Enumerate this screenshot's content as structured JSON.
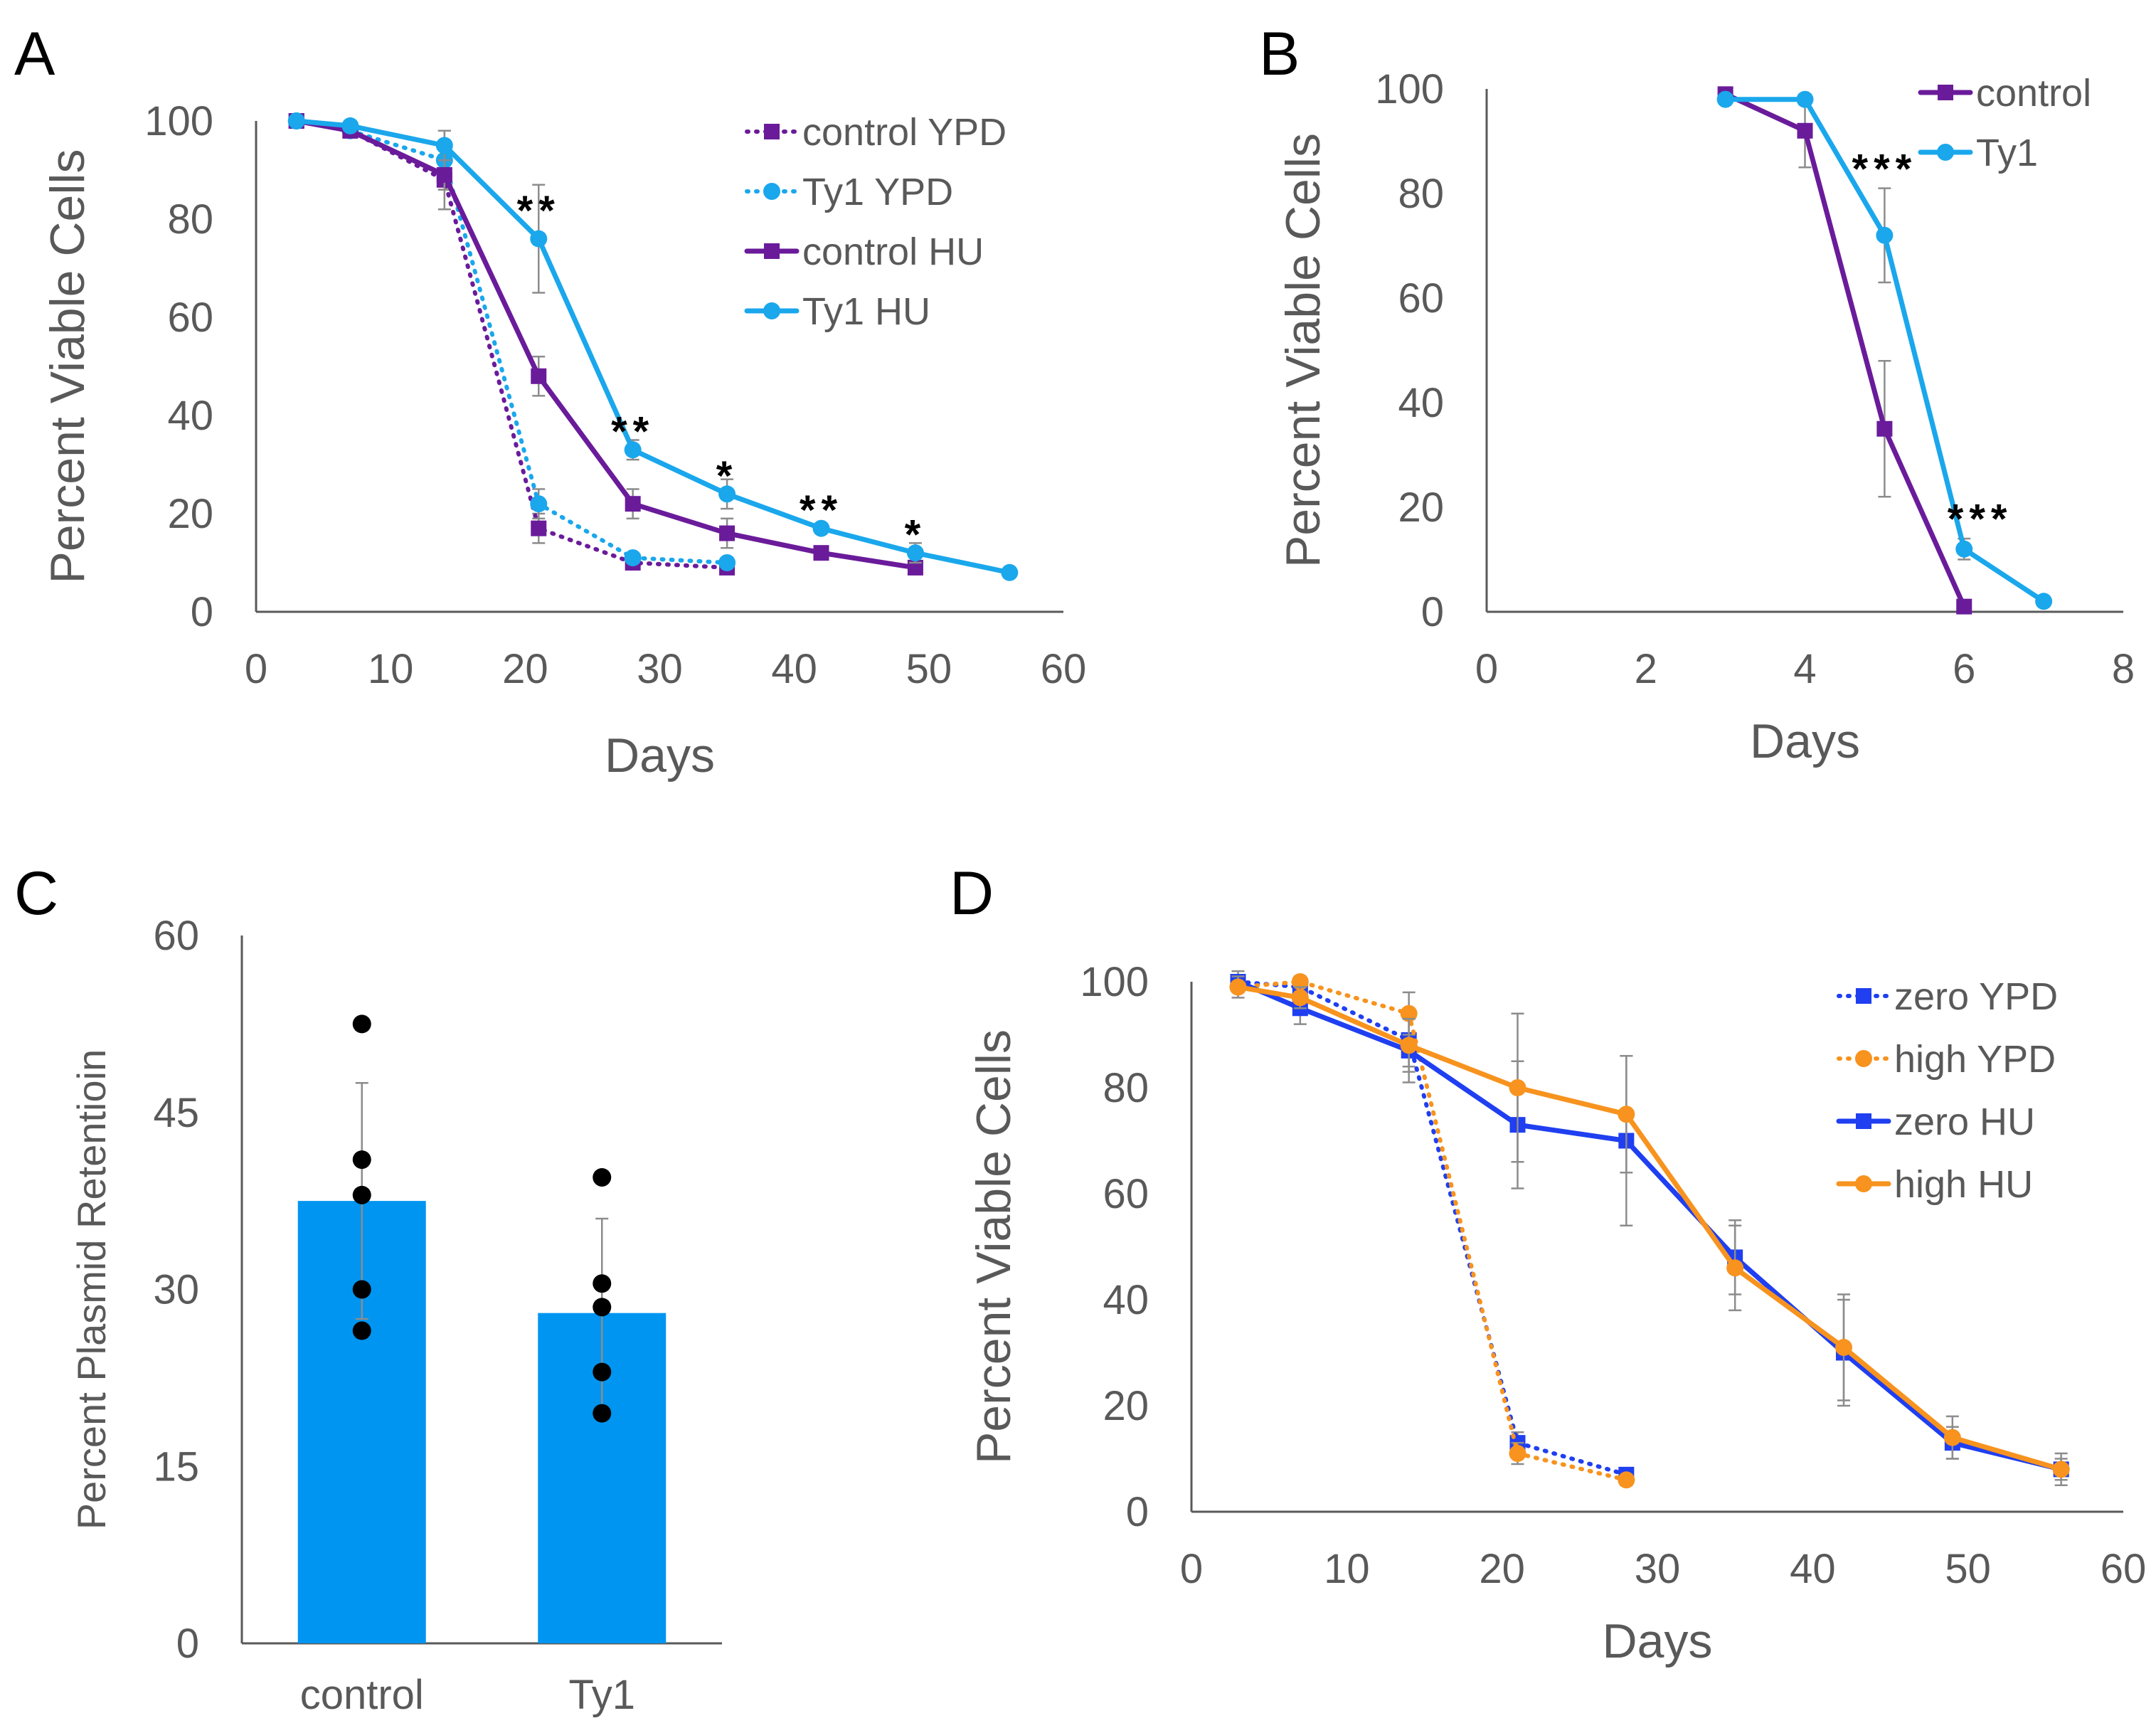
{
  "colors": {
    "purple": "#6a1b9a",
    "lightblue": "#1aa7ec",
    "blue": "#1f3ff0",
    "orange": "#f7931e",
    "bar": "#0095f0",
    "axis": "#595959",
    "errorbar": "#8c8c8c",
    "dots": "#000000"
  },
  "chart_data": [
    {
      "panel": "A",
      "type": "line",
      "xlabel": "Days",
      "ylabel": "Percent Viable Cells",
      "xlim": [
        0,
        60
      ],
      "ylim": [
        0,
        100
      ],
      "xticks": [
        "0",
        "10",
        "20",
        "30",
        "40",
        "50",
        "60"
      ],
      "yticks": [
        "0",
        "20",
        "40",
        "60",
        "80",
        "100"
      ],
      "legend_position": "top-right",
      "series": [
        {
          "name": "control YPD",
          "color": "purple",
          "dashed": true,
          "marker": "square",
          "x": [
            3,
            7,
            14,
            21,
            28,
            35
          ],
          "y": [
            100,
            98,
            88,
            17,
            10,
            9
          ],
          "err": [
            0,
            1,
            6,
            3,
            1,
            1
          ]
        },
        {
          "name": "Ty1 YPD",
          "color": "lightblue",
          "dashed": true,
          "marker": "circle",
          "x": [
            3,
            7,
            14,
            21,
            28,
            35
          ],
          "y": [
            100,
            98,
            92,
            22,
            11,
            10
          ],
          "err": [
            0,
            1,
            6,
            3,
            1,
            1
          ]
        },
        {
          "name": "control HU",
          "color": "purple",
          "dashed": false,
          "marker": "square",
          "x": [
            3,
            7,
            14,
            21,
            28,
            35,
            42,
            49
          ],
          "y": [
            100,
            98,
            89,
            48,
            22,
            16,
            12,
            9
          ],
          "err": [
            0,
            1,
            3,
            4,
            3,
            3,
            1,
            1
          ]
        },
        {
          "name": "Ty1 HU",
          "color": "lightblue",
          "dashed": false,
          "marker": "circle",
          "x": [
            3,
            7,
            14,
            21,
            28,
            35,
            42,
            49,
            56
          ],
          "y": [
            100,
            99,
            95,
            76,
            33,
            24,
            17,
            12,
            8
          ],
          "err": [
            0,
            1,
            3,
            11,
            2,
            3,
            1,
            2,
            0
          ]
        }
      ],
      "annotations": [
        {
          "text": "**",
          "x": 21,
          "y": 82
        },
        {
          "text": "**",
          "x": 28,
          "y": 37
        },
        {
          "text": "*",
          "x": 35,
          "y": 28
        },
        {
          "text": "**",
          "x": 42,
          "y": 21
        },
        {
          "text": "*",
          "x": 49,
          "y": 16
        }
      ]
    },
    {
      "panel": "B",
      "type": "line",
      "xlabel": "Days",
      "ylabel": "Percent Viable Cells",
      "xlim": [
        0,
        8
      ],
      "ylim": [
        0,
        100
      ],
      "xticks": [
        "0",
        "2",
        "4",
        "6",
        "8"
      ],
      "yticks": [
        "0",
        "20",
        "40",
        "60",
        "80",
        "100"
      ],
      "legend_position": "top-right",
      "series": [
        {
          "name": "control",
          "color": "purple",
          "dashed": false,
          "marker": "square",
          "x": [
            3,
            4,
            5,
            6
          ],
          "y": [
            99,
            92,
            35,
            1
          ],
          "err": [
            0,
            7,
            13,
            0
          ]
        },
        {
          "name": "Ty1",
          "color": "lightblue",
          "dashed": false,
          "marker": "circle",
          "x": [
            3,
            4,
            5,
            6,
            7
          ],
          "y": [
            98,
            98,
            72,
            12,
            2
          ],
          "err": [
            0,
            1,
            9,
            2,
            0
          ]
        }
      ],
      "annotations": [
        {
          "text": "***",
          "x": 5,
          "y": 85
        },
        {
          "text": "***",
          "x": 6.2,
          "y": 18
        }
      ]
    },
    {
      "panel": "C",
      "type": "bar",
      "xlabel": "",
      "ylabel": "Percent Plasmid Retentioin",
      "ylim": [
        0,
        60
      ],
      "yticks": [
        "0",
        "15",
        "30",
        "45",
        "60"
      ],
      "categories": [
        "control",
        "Ty1"
      ],
      "values": [
        37.5,
        28
      ],
      "err": [
        10,
        8
      ],
      "points": [
        [
          52.5,
          41,
          38,
          30,
          26.5
        ],
        [
          39.5,
          30.5,
          28.5,
          23,
          19.5
        ]
      ]
    },
    {
      "panel": "D",
      "type": "line",
      "xlabel": "Days",
      "ylabel": "Percent Viable Cells",
      "xlim": [
        0,
        60
      ],
      "ylim": [
        0,
        100
      ],
      "xticks": [
        "0",
        "10",
        "20",
        "30",
        "40",
        "50",
        "60"
      ],
      "yticks": [
        "0",
        "20",
        "40",
        "60",
        "80",
        "100"
      ],
      "legend_position": "top-right",
      "series": [
        {
          "name": "zero YPD",
          "color": "blue",
          "dashed": true,
          "marker": "square",
          "x": [
            3,
            7,
            14,
            21,
            28
          ],
          "y": [
            100,
            99,
            89,
            13,
            7
          ],
          "err": [
            0,
            1,
            5,
            2,
            1
          ]
        },
        {
          "name": "high YPD",
          "color": "orange",
          "dashed": true,
          "marker": "circle",
          "x": [
            3,
            7,
            14,
            21,
            28
          ],
          "y": [
            99,
            100,
            94,
            11,
            6
          ],
          "err": [
            0,
            1,
            4,
            2,
            1
          ]
        },
        {
          "name": "zero HU",
          "color": "blue",
          "dashed": false,
          "marker": "square",
          "x": [
            3,
            7,
            14,
            21,
            28,
            35,
            42,
            49,
            56
          ],
          "y": [
            100,
            95,
            87,
            73,
            70,
            48,
            30,
            13,
            8
          ],
          "err": [
            2,
            3,
            6,
            12,
            16,
            7,
            10,
            3,
            2
          ]
        },
        {
          "name": "high HU",
          "color": "orange",
          "dashed": false,
          "marker": "circle",
          "x": [
            3,
            7,
            14,
            21,
            28,
            35,
            42,
            49,
            56
          ],
          "y": [
            99,
            97,
            88,
            80,
            75,
            46,
            31,
            14,
            8
          ],
          "err": [
            2,
            2,
            5,
            14,
            11,
            8,
            10,
            4,
            3
          ]
        }
      ],
      "annotations": []
    }
  ]
}
